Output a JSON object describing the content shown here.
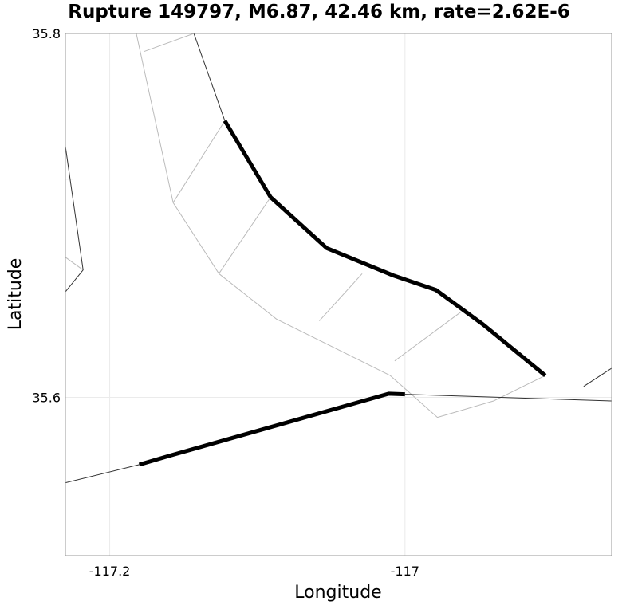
{
  "chart_data": {
    "type": "line",
    "title": "Rupture 149797, M6.87, 42.46 km, rate=2.62E-6",
    "xlabel": "Longitude",
    "ylabel": "Latitude",
    "xlim": [
      -117.23,
      -116.86
    ],
    "ylim": [
      35.513,
      35.8
    ],
    "x_ticks": [
      {
        "value": -117.2,
        "label": "-117.2"
      },
      {
        "value": -117.0,
        "label": "-117"
      }
    ],
    "y_ticks": [
      {
        "value": 35.6,
        "label": "35.6"
      },
      {
        "value": 35.8,
        "label": "35.8"
      }
    ],
    "grid": true,
    "colors": {
      "rupture": "#000000",
      "fault_trace": "#333333",
      "fault_outline": "#bbbbbb",
      "grid": "#ebebeb",
      "frame": "#999999"
    },
    "series": [
      {
        "name": "rupture-trace-north",
        "role": "rupture",
        "points": [
          [
            -117.122,
            35.752
          ],
          [
            -117.091,
            35.71
          ],
          [
            -117.053,
            35.682
          ],
          [
            -117.008,
            35.667
          ],
          [
            -116.979,
            35.659
          ],
          [
            -116.947,
            35.64
          ],
          [
            -116.905,
            35.612
          ]
        ]
      },
      {
        "name": "rupture-trace-south",
        "role": "rupture",
        "points": [
          [
            -117.18,
            35.563
          ],
          [
            -117.159,
            35.568
          ],
          [
            -117.011,
            35.602
          ],
          [
            -117.0,
            35.6017
          ]
        ]
      },
      {
        "name": "fault-trace-north-cont",
        "role": "fault_trace",
        "points": [
          [
            -117.143,
            35.8
          ],
          [
            -117.122,
            35.752
          ]
        ]
      },
      {
        "name": "fault-trace-west",
        "role": "fault_trace",
        "points": [
          [
            -117.23,
            35.738
          ],
          [
            -117.218,
            35.67
          ],
          [
            -117.23,
            35.658
          ]
        ]
      },
      {
        "name": "fault-trace-south-west",
        "role": "fault_trace",
        "points": [
          [
            -117.23,
            35.553
          ],
          [
            -117.18,
            35.563
          ]
        ]
      },
      {
        "name": "fault-trace-south-east",
        "role": "fault_trace",
        "points": [
          [
            -117.0,
            35.6017
          ],
          [
            -116.86,
            35.598
          ]
        ]
      },
      {
        "name": "fault-trace-east",
        "role": "fault_trace",
        "points": [
          [
            -116.879,
            35.606
          ],
          [
            -116.86,
            35.616
          ]
        ]
      },
      {
        "name": "fault-outline-dip",
        "role": "fault_outline",
        "points": [
          [
            -117.182,
            35.8
          ],
          [
            -117.157,
            35.707
          ],
          [
            -117.126,
            35.668
          ],
          [
            -117.087,
            35.643
          ],
          [
            -117.01,
            35.612
          ],
          [
            -116.978,
            35.589
          ],
          [
            -116.94,
            35.598
          ],
          [
            -116.905,
            35.612
          ]
        ]
      },
      {
        "name": "fault-outline-ticks",
        "role": "fault_outline_segments",
        "segments": [
          [
            [
              -117.177,
              35.79
            ],
            [
              -117.143,
              35.8
            ]
          ],
          [
            [
              -117.157,
              35.707
            ],
            [
              -117.122,
              35.752
            ]
          ],
          [
            [
              -117.126,
              35.668
            ],
            [
              -117.091,
              35.71
            ]
          ],
          [
            [
              -117.058,
              35.642
            ],
            [
              -117.029,
              35.668
            ]
          ],
          [
            [
              -117.007,
              35.62
            ],
            [
              -116.962,
              35.647
            ]
          ],
          [
            [
              -117.23,
              35.677
            ],
            [
              -117.218,
              35.67
            ]
          ],
          [
            [
              -117.23,
              35.72
            ],
            [
              -117.225,
              35.72
            ]
          ]
        ]
      }
    ]
  }
}
